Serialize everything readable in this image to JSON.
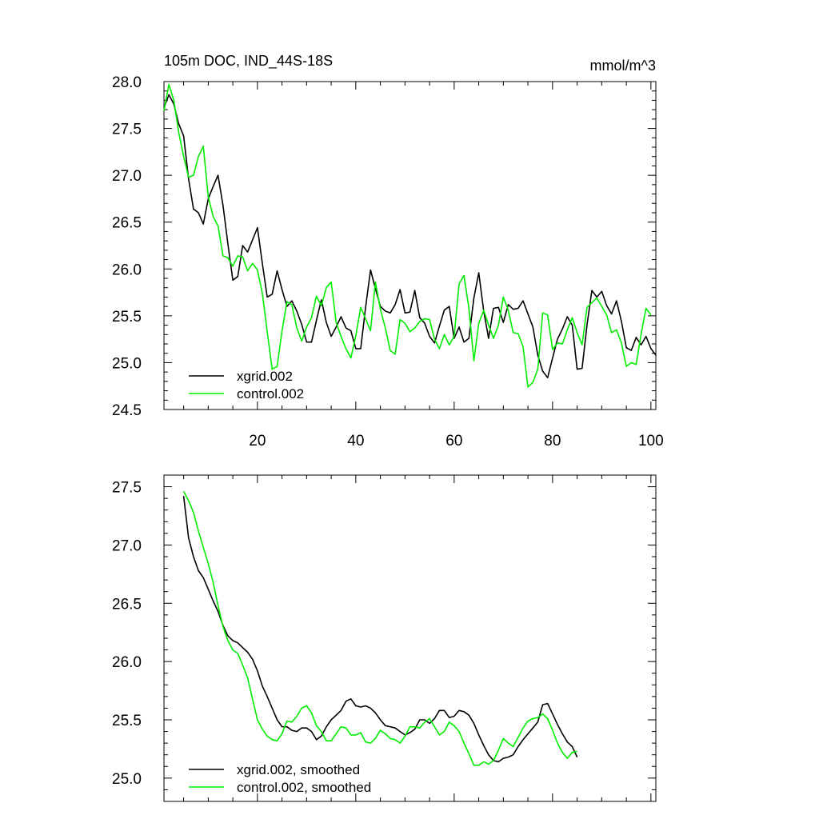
{
  "chart_data": [
    {
      "type": "line",
      "title": "105m DOC, IND_44S-18S",
      "units": "mmol/m^3",
      "xlim": [
        1,
        101
      ],
      "ylim": [
        24.5,
        28.0
      ],
      "yticks": [
        "24.5",
        "25.0",
        "25.5",
        "26.0",
        "26.5",
        "27.0",
        "27.5",
        "28.0"
      ],
      "xticks": [
        "20",
        "40",
        "60",
        "80",
        "100"
      ],
      "x_start": 1,
      "series": [
        {
          "name": "xgrid.002",
          "color": "#000000",
          "values": [
            27.72,
            27.86,
            27.76,
            27.55,
            27.42,
            26.96,
            26.64,
            26.6,
            26.48,
            26.75,
            26.88,
            27.0,
            26.68,
            26.27,
            25.88,
            25.92,
            26.25,
            26.18,
            26.31,
            26.44,
            26.06,
            25.7,
            25.73,
            25.98,
            25.78,
            25.6,
            25.66,
            25.55,
            25.41,
            25.22,
            25.22,
            25.45,
            25.67,
            25.43,
            25.28,
            25.38,
            25.49,
            25.37,
            25.34,
            25.15,
            25.15,
            25.59,
            25.99,
            25.79,
            25.6,
            25.55,
            25.53,
            25.62,
            25.78,
            25.53,
            25.54,
            25.77,
            25.48,
            25.42,
            25.28,
            25.21,
            25.39,
            25.56,
            25.6,
            25.26,
            25.38,
            25.22,
            25.26,
            25.69,
            25.96,
            25.55,
            25.26,
            25.58,
            25.59,
            25.43,
            25.62,
            25.57,
            25.58,
            25.66,
            25.52,
            25.38,
            25.08,
            24.91,
            24.84,
            25.05,
            25.25,
            25.36,
            25.49,
            25.4,
            24.93,
            24.94,
            25.4,
            25.77,
            25.7,
            25.76,
            25.61,
            25.52,
            25.66,
            25.44,
            25.16,
            25.13,
            25.27,
            25.19,
            25.28,
            25.15,
            25.08
          ]
        },
        {
          "name": "control.002",
          "color": "#00ee00",
          "values": [
            27.69,
            27.97,
            27.8,
            27.46,
            27.2,
            26.98,
            27.0,
            27.2,
            27.31,
            26.77,
            26.56,
            26.46,
            26.14,
            26.12,
            26.03,
            26.14,
            26.13,
            25.98,
            26.06,
            25.99,
            25.74,
            25.33,
            24.93,
            24.96,
            25.34,
            25.65,
            25.62,
            25.37,
            25.23,
            25.38,
            25.48,
            25.71,
            25.61,
            25.8,
            25.86,
            25.43,
            25.28,
            25.15,
            25.05,
            25.29,
            25.59,
            25.47,
            25.34,
            25.86,
            25.57,
            25.37,
            25.13,
            25.09,
            25.46,
            25.42,
            25.33,
            25.37,
            25.44,
            25.47,
            25.46,
            25.25,
            25.15,
            25.3,
            25.19,
            25.28,
            25.84,
            25.93,
            25.58,
            25.02,
            25.42,
            25.56,
            25.4,
            25.26,
            25.4,
            25.7,
            25.56,
            25.32,
            25.31,
            25.17,
            24.74,
            24.79,
            24.93,
            25.53,
            25.51,
            25.14,
            25.21,
            25.2,
            25.35,
            25.48,
            25.32,
            25.19,
            25.59,
            25.64,
            25.69,
            25.6,
            25.51,
            25.32,
            25.35,
            25.21,
            24.96,
            25.0,
            24.98,
            25.3,
            25.58,
            25.51
          ]
        }
      ],
      "legend": "bottom-left"
    },
    {
      "type": "line",
      "xlim": [
        1,
        101
      ],
      "ylim": [
        24.8,
        27.6
      ],
      "yticks": [
        "25.0",
        "25.5",
        "26.0",
        "26.5",
        "27.0",
        "27.5"
      ],
      "x_start": 5,
      "series": [
        {
          "name": "xgrid.002, smoothed",
          "color": "#000000",
          "values": [
            27.42,
            27.06,
            26.9,
            26.78,
            26.72,
            26.62,
            26.52,
            26.43,
            26.31,
            26.22,
            26.18,
            26.16,
            26.12,
            26.08,
            26.02,
            25.92,
            25.79,
            25.7,
            25.6,
            25.5,
            25.44,
            25.44,
            25.41,
            25.4,
            25.43,
            25.43,
            25.4,
            25.33,
            25.36,
            25.44,
            25.5,
            25.54,
            25.58,
            25.66,
            25.68,
            25.62,
            25.61,
            25.62,
            25.6,
            25.56,
            25.5,
            25.45,
            25.44,
            25.43,
            25.4,
            25.37,
            25.39,
            25.42,
            25.5,
            25.5,
            25.47,
            25.51,
            25.58,
            25.58,
            25.52,
            25.53,
            25.58,
            25.57,
            25.54,
            25.47,
            25.37,
            25.28,
            25.2,
            25.15,
            25.14,
            25.17,
            25.18,
            25.2,
            25.27,
            25.33,
            25.38,
            25.43,
            25.48,
            25.63,
            25.64,
            25.55,
            25.46,
            25.38,
            25.31,
            25.27,
            25.18
          ]
        },
        {
          "name": "control.002, smoothed",
          "color": "#00ee00",
          "values": [
            27.46,
            27.38,
            27.28,
            27.12,
            26.98,
            26.84,
            26.68,
            26.48,
            26.3,
            26.18,
            26.1,
            26.07,
            25.97,
            25.86,
            25.68,
            25.5,
            25.42,
            25.36,
            25.33,
            25.32,
            25.38,
            25.49,
            25.48,
            25.53,
            25.6,
            25.62,
            25.56,
            25.45,
            25.4,
            25.32,
            25.32,
            25.38,
            25.44,
            25.43,
            25.37,
            25.37,
            25.39,
            25.31,
            25.3,
            25.34,
            25.41,
            25.38,
            25.34,
            25.33,
            25.3,
            25.36,
            25.44,
            25.44,
            25.43,
            25.48,
            25.51,
            25.44,
            25.37,
            25.4,
            25.48,
            25.45,
            25.4,
            25.3,
            25.21,
            25.11,
            25.11,
            25.14,
            25.12,
            25.15,
            25.24,
            25.34,
            25.3,
            25.27,
            25.35,
            25.43,
            25.49,
            25.51,
            25.52,
            25.55,
            25.51,
            25.41,
            25.3,
            25.22,
            25.17,
            25.22,
            25.23
          ]
        }
      ],
      "legend": "bottom-left"
    }
  ]
}
